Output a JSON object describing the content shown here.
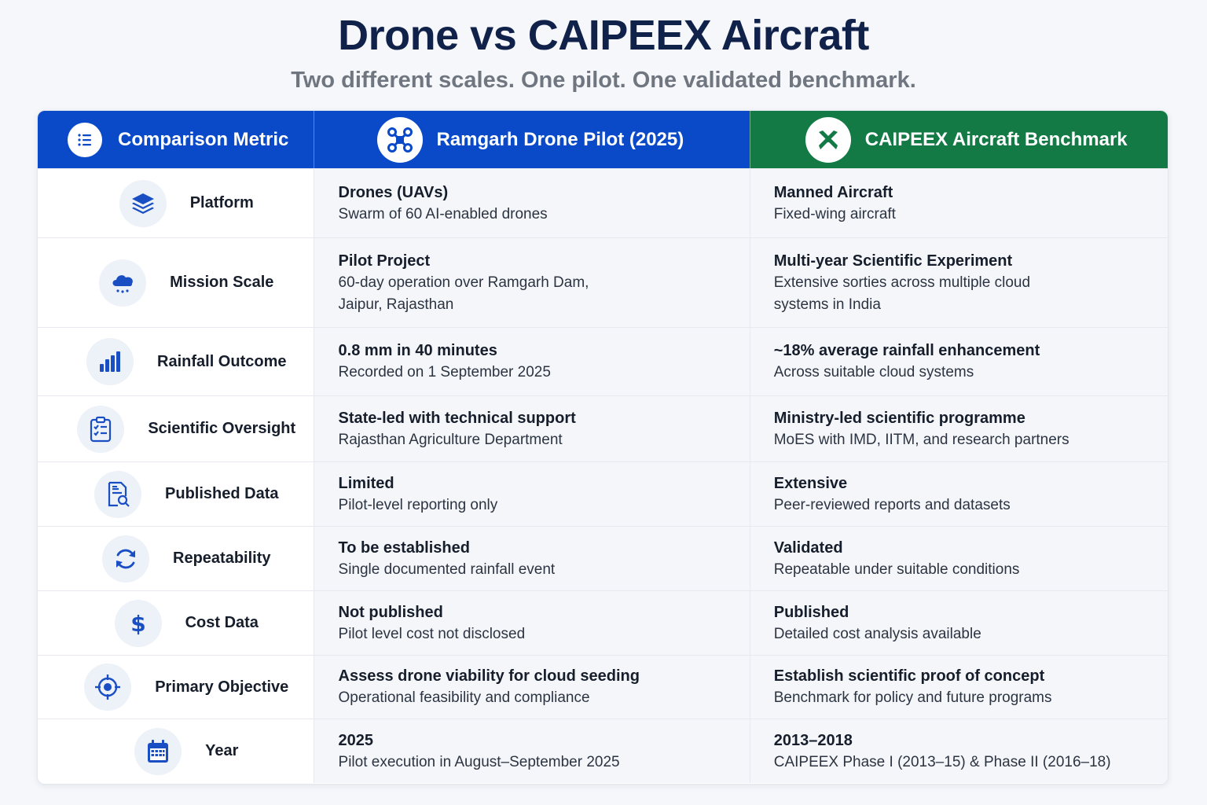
{
  "header": {
    "title": "Drone vs CAIPEEX Aircraft",
    "subtitle": "Two different scales. One pilot. One validated benchmark."
  },
  "table": {
    "columns": [
      {
        "label": "Comparison Metric",
        "icon": "list-icon"
      },
      {
        "label": "Ramgarh Drone Pilot (2025)",
        "icon": "drone-icon"
      },
      {
        "label": "CAIPEEX Aircraft Benchmark",
        "icon": "aircraft-icon"
      }
    ],
    "rows": [
      {
        "metric": "Platform",
        "icon": "layers-icon",
        "drone": {
          "primary": "Drones (UAVs)",
          "secondary": "Swarm of 60 AI-enabled drones"
        },
        "caipeex": {
          "primary": "Manned Aircraft",
          "secondary": "Fixed-wing aircraft"
        }
      },
      {
        "metric": "Mission Scale",
        "icon": "rain-cloud-icon",
        "drone": {
          "primary": "Pilot Project",
          "secondary": "60-day operation over Ramgarh Dam,",
          "secondary2": "Jaipur, Rajasthan"
        },
        "caipeex": {
          "primary": "Multi-year Scientific Experiment",
          "secondary": "Extensive sorties across multiple cloud",
          "secondary2": "systems in India"
        }
      },
      {
        "metric": "Rainfall Outcome",
        "icon": "bar-chart-icon",
        "drone": {
          "primary": "0.8 mm in 40 minutes",
          "secondary": "Recorded on 1 September 2025"
        },
        "caipeex": {
          "primary": "~18% average rainfall enhancement",
          "secondary": "Across suitable cloud systems"
        }
      },
      {
        "metric": "Scientific Oversight",
        "icon": "clipboard-check-icon",
        "drone": {
          "primary": "State-led with technical support",
          "secondary": "Rajasthan Agriculture Department"
        },
        "caipeex": {
          "primary": "Ministry-led scientific programme",
          "secondary": "MoES with IMD, IITM, and research partners"
        }
      },
      {
        "metric": "Published Data",
        "icon": "document-search-icon",
        "drone": {
          "primary": "Limited",
          "secondary": "Pilot-level reporting only"
        },
        "caipeex": {
          "primary": "Extensive",
          "secondary": "Peer-reviewed reports and datasets"
        }
      },
      {
        "metric": "Repeatability",
        "icon": "refresh-icon",
        "drone": {
          "primary": "To be established",
          "secondary": "Single documented rainfall event"
        },
        "caipeex": {
          "primary": "Validated",
          "secondary": "Repeatable under suitable conditions"
        }
      },
      {
        "metric": "Cost Data",
        "icon": "dollar-icon",
        "drone": {
          "primary": "Not published",
          "secondary": "Pilot level cost not disclosed"
        },
        "caipeex": {
          "primary": "Published",
          "secondary": "Detailed cost analysis available"
        }
      },
      {
        "metric": "Primary Objective",
        "icon": "target-icon",
        "drone": {
          "primary": "Assess drone viability for cloud seeding",
          "secondary": "Operational feasibility and compliance"
        },
        "caipeex": {
          "primary": "Establish scientific proof of concept",
          "secondary": "Benchmark for policy and future programs"
        }
      },
      {
        "metric": "Year",
        "icon": "calendar-icon",
        "drone": {
          "primary": "2025",
          "secondary": "Pilot execution in August–September 2025"
        },
        "caipeex": {
          "primary": "2013–2018",
          "secondary": "CAIPEEX Phase I (2013–15) & Phase II (2016–18)"
        }
      }
    ]
  },
  "colors": {
    "drone_header": "#0a4ac9",
    "caipeex_header": "#137a45",
    "icon_blue": "#1a4fc4",
    "title": "#10214a"
  }
}
